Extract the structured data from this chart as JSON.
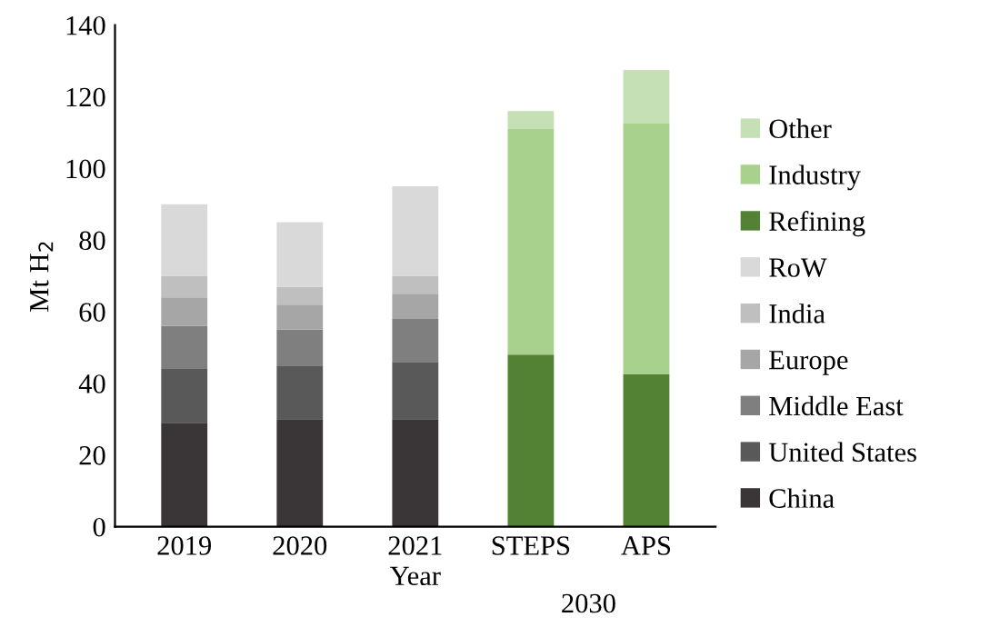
{
  "chart_data": {
    "type": "bar",
    "stacked": true,
    "xlabel": "Year",
    "ylabel": "Mt H$_{2}$",
    "categories": [
      "2019",
      "2020",
      "2021",
      "STEPS",
      "APS"
    ],
    "annotations": [
      "2030"
    ],
    "ylim": [
      0,
      140
    ],
    "yticks": [
      0,
      20,
      40,
      60,
      80,
      100,
      120,
      140
    ],
    "grid": false,
    "legend": "right",
    "series": [
      {
        "name": "China",
        "color": "#3a3536",
        "values": [
          29,
          30,
          30,
          null,
          null
        ]
      },
      {
        "name": "United States",
        "color": "#595959",
        "values": [
          15,
          15,
          16,
          null,
          null
        ]
      },
      {
        "name": "Middle East",
        "color": "#7f7f7f",
        "values": [
          12,
          10,
          12,
          null,
          null
        ]
      },
      {
        "name": "Europe",
        "color": "#a6a6a6",
        "values": [
          8,
          7,
          7,
          null,
          null
        ]
      },
      {
        "name": "India",
        "color": "#bfbfbf",
        "values": [
          6,
          5,
          5,
          null,
          null
        ]
      },
      {
        "name": "RoW",
        "color": "#d9d9d9",
        "values": [
          20,
          18,
          25,
          null,
          null
        ]
      },
      {
        "name": "Refining",
        "color": "#548235",
        "values": [
          null,
          null,
          null,
          48,
          42.5
        ]
      },
      {
        "name": "Industry",
        "color": "#a9d18e",
        "values": [
          null,
          null,
          null,
          63,
          70
        ]
      },
      {
        "name": "Other",
        "color": "#c5e0b4",
        "values": [
          null,
          null,
          null,
          5,
          15
        ]
      }
    ]
  }
}
